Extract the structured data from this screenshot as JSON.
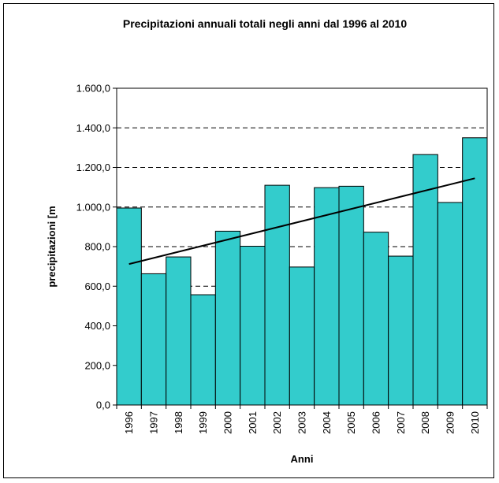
{
  "chart_data": {
    "type": "bar",
    "title": "Precipitazioni annuali totali negli anni dal 1996 al 2010",
    "xlabel": "Anni",
    "ylabel": "precipitazioni [m",
    "categories": [
      "1996",
      "1997",
      "1998",
      "1999",
      "2000",
      "2001",
      "2002",
      "2003",
      "2004",
      "2005",
      "2006",
      "2007",
      "2008",
      "2009",
      "2010"
    ],
    "values": [
      995,
      663,
      748,
      557,
      878,
      802,
      1110,
      697,
      1098,
      1105,
      873,
      752,
      1265,
      1023,
      1350
    ],
    "ylim": [
      0,
      1600
    ],
    "yticks": [
      0,
      200,
      400,
      600,
      800,
      1000,
      1200,
      1400,
      1600
    ],
    "ytick_labels": [
      "0,0",
      "200,0",
      "400,0",
      "600,0",
      "800,0",
      "1.000,0",
      "1.200,0",
      "1.400,0",
      "1.600,0"
    ],
    "trendline": {
      "type": "linear",
      "start_value": 712,
      "end_value": 1145
    },
    "grid": "horizontal-dashed",
    "bar_color": "#33cccc"
  }
}
